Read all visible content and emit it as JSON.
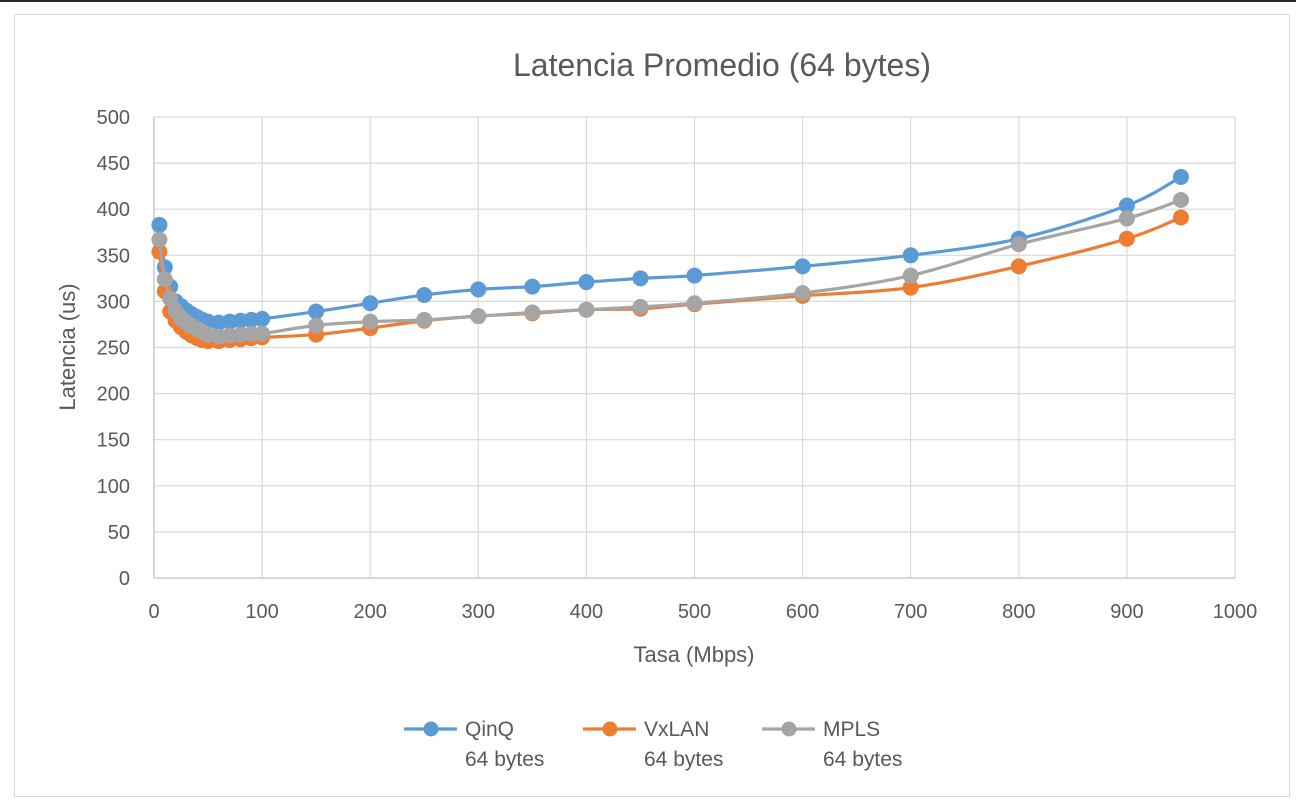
{
  "chart_data": {
    "type": "line",
    "title": "Latencia Promedio (64 bytes)",
    "xlabel": "Tasa (Mbps)",
    "ylabel": "Latencia (us)",
    "xlim": [
      0,
      1000
    ],
    "ylim": [
      0,
      500
    ],
    "xticks": [
      0,
      100,
      200,
      300,
      400,
      500,
      600,
      700,
      800,
      900,
      1000
    ],
    "yticks": [
      0,
      50,
      100,
      150,
      200,
      250,
      300,
      350,
      400,
      450,
      500
    ],
    "grid": true,
    "legend_position": "bottom",
    "smooth": true,
    "series": [
      {
        "name_line1": "QinQ",
        "name_line2": "64 bytes",
        "color": "#5b9bd5",
        "points": [
          [
            5,
            383
          ],
          [
            10,
            337
          ],
          [
            15,
            316
          ],
          [
            20,
            300
          ],
          [
            25,
            295
          ],
          [
            30,
            290
          ],
          [
            35,
            286
          ],
          [
            40,
            283
          ],
          [
            45,
            280
          ],
          [
            50,
            278
          ],
          [
            60,
            277
          ],
          [
            70,
            278
          ],
          [
            80,
            279
          ],
          [
            90,
            280
          ],
          [
            100,
            281
          ],
          [
            150,
            289
          ],
          [
            200,
            298
          ],
          [
            250,
            307
          ],
          [
            300,
            313
          ],
          [
            350,
            316
          ],
          [
            400,
            321
          ],
          [
            450,
            325
          ],
          [
            500,
            328
          ],
          [
            600,
            338
          ],
          [
            700,
            350
          ],
          [
            800,
            368
          ],
          [
            900,
            404
          ],
          [
            950,
            435
          ]
        ]
      },
      {
        "name_line1": "VxLAN",
        "name_line2": "64 bytes",
        "color": "#ed7d31",
        "points": [
          [
            5,
            354
          ],
          [
            10,
            311
          ],
          [
            15,
            289
          ],
          [
            20,
            279
          ],
          [
            25,
            272
          ],
          [
            30,
            267
          ],
          [
            35,
            263
          ],
          [
            40,
            260
          ],
          [
            45,
            258
          ],
          [
            50,
            257
          ],
          [
            60,
            257
          ],
          [
            70,
            258
          ],
          [
            80,
            259
          ],
          [
            90,
            260
          ],
          [
            100,
            261
          ],
          [
            150,
            264
          ],
          [
            200,
            271
          ],
          [
            250,
            279
          ],
          [
            300,
            284
          ],
          [
            350,
            287
          ],
          [
            400,
            291
          ],
          [
            450,
            292
          ],
          [
            500,
            297
          ],
          [
            600,
            306
          ],
          [
            700,
            315
          ],
          [
            800,
            338
          ],
          [
            900,
            368
          ],
          [
            950,
            391
          ]
        ]
      },
      {
        "name_line1": "MPLS",
        "name_line2": "64 bytes",
        "color": "#a5a5a5",
        "points": [
          [
            5,
            367
          ],
          [
            10,
            324
          ],
          [
            15,
            303
          ],
          [
            20,
            290
          ],
          [
            25,
            282
          ],
          [
            30,
            277
          ],
          [
            35,
            273
          ],
          [
            40,
            270
          ],
          [
            45,
            267
          ],
          [
            50,
            264
          ],
          [
            60,
            262
          ],
          [
            70,
            263
          ],
          [
            80,
            264
          ],
          [
            90,
            265
          ],
          [
            100,
            265
          ],
          [
            150,
            274
          ],
          [
            200,
            278
          ],
          [
            250,
            280
          ],
          [
            300,
            284
          ],
          [
            350,
            288
          ],
          [
            400,
            291
          ],
          [
            450,
            294
          ],
          [
            500,
            298
          ],
          [
            600,
            309
          ],
          [
            700,
            328
          ],
          [
            800,
            362
          ],
          [
            900,
            390
          ],
          [
            950,
            410
          ]
        ]
      }
    ]
  }
}
